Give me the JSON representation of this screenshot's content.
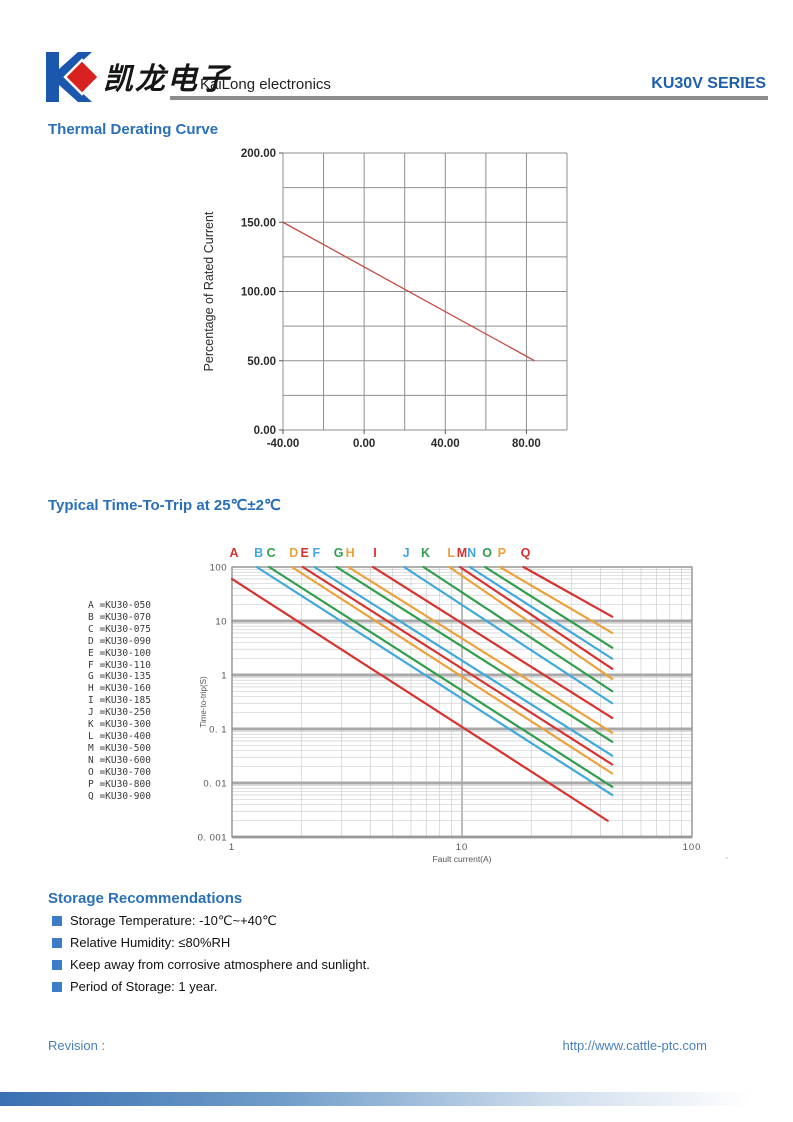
{
  "header": {
    "brand_cn": "凯龙电子",
    "brand_en": "KaiLong electronics",
    "series": "KU30V SERIES"
  },
  "sections": {
    "derating_title": "Thermal Derating Curve",
    "trip_title": "Typical Time-To-Trip at 25℃±2℃",
    "storage_title": "Storage Recommendations"
  },
  "storage_items": [
    "Storage Temperature: -10℃~+40℃",
    "Relative Humidity: ≤80%RH",
    "Keep away from corrosive atmosphere and sunlight.",
    "Period of Storage: 1 year."
  ],
  "footer": {
    "revision_label": "Revision :",
    "url": "http://www.cattle-ptc.com"
  },
  "colors": {
    "heading_blue": "#2a70b8",
    "series_blue": "#1e5fae",
    "footer_blue": "#4a80ba",
    "bullet_blue": "#3d7cc9",
    "logo_blue": "#1b57ad",
    "logo_red": "#d8221f"
  },
  "chart_data": [
    {
      "type": "line",
      "title": "Thermal Derating Curve",
      "xlabel": "",
      "ylabel": "Percentage of Rated Current",
      "xlim": [
        -40,
        100
      ],
      "ylim": [
        0,
        200
      ],
      "x_grid_step": 20,
      "y_grid_step": 25,
      "x_ticks": [
        {
          "v": -40,
          "label": "-40.00"
        },
        {
          "v": 0,
          "label": "0.00"
        },
        {
          "v": 40,
          "label": "40.00"
        },
        {
          "v": 80,
          "label": "80.00"
        }
      ],
      "y_ticks": [
        {
          "v": 0,
          "label": "0.00"
        },
        {
          "v": 50,
          "label": "50.00"
        },
        {
          "v": 100,
          "label": "100.00"
        },
        {
          "v": 150,
          "label": "150.00"
        },
        {
          "v": 200,
          "label": "200.00"
        }
      ],
      "grid": true,
      "series": [
        {
          "name": "derating-line",
          "color": "#c84b42",
          "points": [
            [
              -40,
              150
            ],
            [
              84,
              50
            ]
          ]
        }
      ]
    },
    {
      "type": "line",
      "title": "Typical Time-To-Trip at 25℃±2℃",
      "xlabel": "Fault current(A)",
      "ylabel": "Time-to-trip(S)",
      "xscale": "log",
      "yscale": "log",
      "xlim": [
        1,
        100
      ],
      "ylim": [
        0.001,
        100
      ],
      "x_ticks": [
        {
          "v": 1,
          "label": "1"
        },
        {
          "v": 10,
          "label": "10"
        },
        {
          "v": 100,
          "label": "100"
        }
      ],
      "y_ticks": [
        {
          "v": 100,
          "label": "100"
        },
        {
          "v": 10,
          "label": "10"
        },
        {
          "v": 1,
          "label": "1"
        },
        {
          "v": 0.1,
          "label": "0. 1"
        },
        {
          "v": 0.01,
          "label": "0. 01"
        },
        {
          "v": 0.001,
          "label": "0. 001"
        }
      ],
      "grid": true,
      "legend_position": "left",
      "series": [
        {
          "label": "A",
          "model": "KU30-050",
          "color": "#d63330",
          "points": [
            [
              1.0,
              60
            ],
            [
              43,
              0.002
            ]
          ]
        },
        {
          "label": "B",
          "model": "KU30-070",
          "color": "#3fa9dc",
          "points": [
            [
              1.28,
              100
            ],
            [
              45,
              0.006
            ]
          ]
        },
        {
          "label": "C",
          "model": "KU30-075",
          "color": "#2f9e4d",
          "points": [
            [
              1.45,
              100
            ],
            [
              45,
              0.0085
            ]
          ]
        },
        {
          "label": "D",
          "model": "KU30-090",
          "color": "#eaa23c",
          "points": [
            [
              1.82,
              100
            ],
            [
              45,
              0.015
            ]
          ]
        },
        {
          "label": "E",
          "model": "KU30-100",
          "color": "#d63330",
          "points": [
            [
              2.03,
              100
            ],
            [
              45,
              0.022
            ]
          ]
        },
        {
          "label": "F",
          "model": "KU30-110",
          "color": "#3fa9dc",
          "points": [
            [
              2.28,
              100
            ],
            [
              45,
              0.032
            ]
          ]
        },
        {
          "label": "G",
          "model": "KU30-135",
          "color": "#2f9e4d",
          "points": [
            [
              2.85,
              100
            ],
            [
              45,
              0.058
            ]
          ]
        },
        {
          "label": "H",
          "model": "KU30-160",
          "color": "#eaa23c",
          "points": [
            [
              3.2,
              100
            ],
            [
              45,
              0.085
            ]
          ]
        },
        {
          "label": "I",
          "model": "KU30-185",
          "color": "#d63330",
          "points": [
            [
              4.1,
              100
            ],
            [
              45,
              0.16
            ]
          ]
        },
        {
          "label": "J",
          "model": "KU30-250",
          "color": "#3fa9dc",
          "points": [
            [
              5.6,
              100
            ],
            [
              45,
              0.3
            ]
          ]
        },
        {
          "label": "K",
          "model": "KU30-300",
          "color": "#2f9e4d",
          "points": [
            [
              6.8,
              100
            ],
            [
              45,
              0.5
            ]
          ]
        },
        {
          "label": "L",
          "model": "KU30-400",
          "color": "#eaa23c",
          "points": [
            [
              8.8,
              100
            ],
            [
              45,
              0.85
            ]
          ]
        },
        {
          "label": "M",
          "model": "KU30-500",
          "color": "#d63330",
          "points": [
            [
              9.8,
              100
            ],
            [
              45,
              1.3
            ]
          ]
        },
        {
          "label": "N",
          "model": "KU30-600",
          "color": "#3fa9dc",
          "points": [
            [
              10.8,
              100
            ],
            [
              45,
              2.0
            ]
          ]
        },
        {
          "label": "O",
          "model": "KU30-700",
          "color": "#2f9e4d",
          "points": [
            [
              12.6,
              100
            ],
            [
              45,
              3.2
            ]
          ]
        },
        {
          "label": "P",
          "model": "KU30-800",
          "color": "#eaa23c",
          "points": [
            [
              14.6,
              100
            ],
            [
              45,
              6.0
            ]
          ]
        },
        {
          "label": "Q",
          "model": "KU30-900",
          "color": "#d63330",
          "points": [
            [
              18.5,
              100
            ],
            [
              45,
              12.0
            ]
          ]
        }
      ]
    }
  ]
}
